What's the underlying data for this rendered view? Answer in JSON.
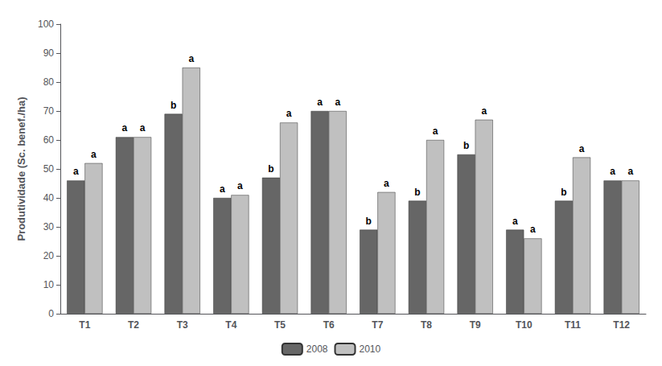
{
  "chart_data": {
    "type": "bar",
    "categories": [
      "T1",
      "T2",
      "T3",
      "T4",
      "T5",
      "T6",
      "T7",
      "T8",
      "T9",
      "T10",
      "T11",
      "T12"
    ],
    "ylabel": "Produtividade (Sc. benef./ha)",
    "ylim": [
      0,
      100
    ],
    "yticks": [
      0,
      10,
      20,
      30,
      40,
      50,
      60,
      70,
      80,
      90,
      100
    ],
    "grid": false,
    "legend": "bottom",
    "series": [
      {
        "name": "2008",
        "color": "#666666",
        "values": [
          46,
          61,
          69,
          40,
          47,
          70,
          29,
          39,
          55,
          29,
          39,
          46
        ],
        "annotations": [
          "a",
          "a",
          "b",
          "a",
          "b",
          "a",
          "b",
          "b",
          "b",
          "a",
          "b",
          "a"
        ]
      },
      {
        "name": "2010",
        "color": "#c0c0c0",
        "values": [
          52,
          61,
          85,
          41,
          66,
          70,
          42,
          60,
          67,
          26,
          54,
          46
        ],
        "annotations": [
          "a",
          "a",
          "a",
          "a",
          "a",
          "a",
          "a",
          "a",
          "a",
          "a",
          "a",
          "a"
        ]
      }
    ]
  }
}
